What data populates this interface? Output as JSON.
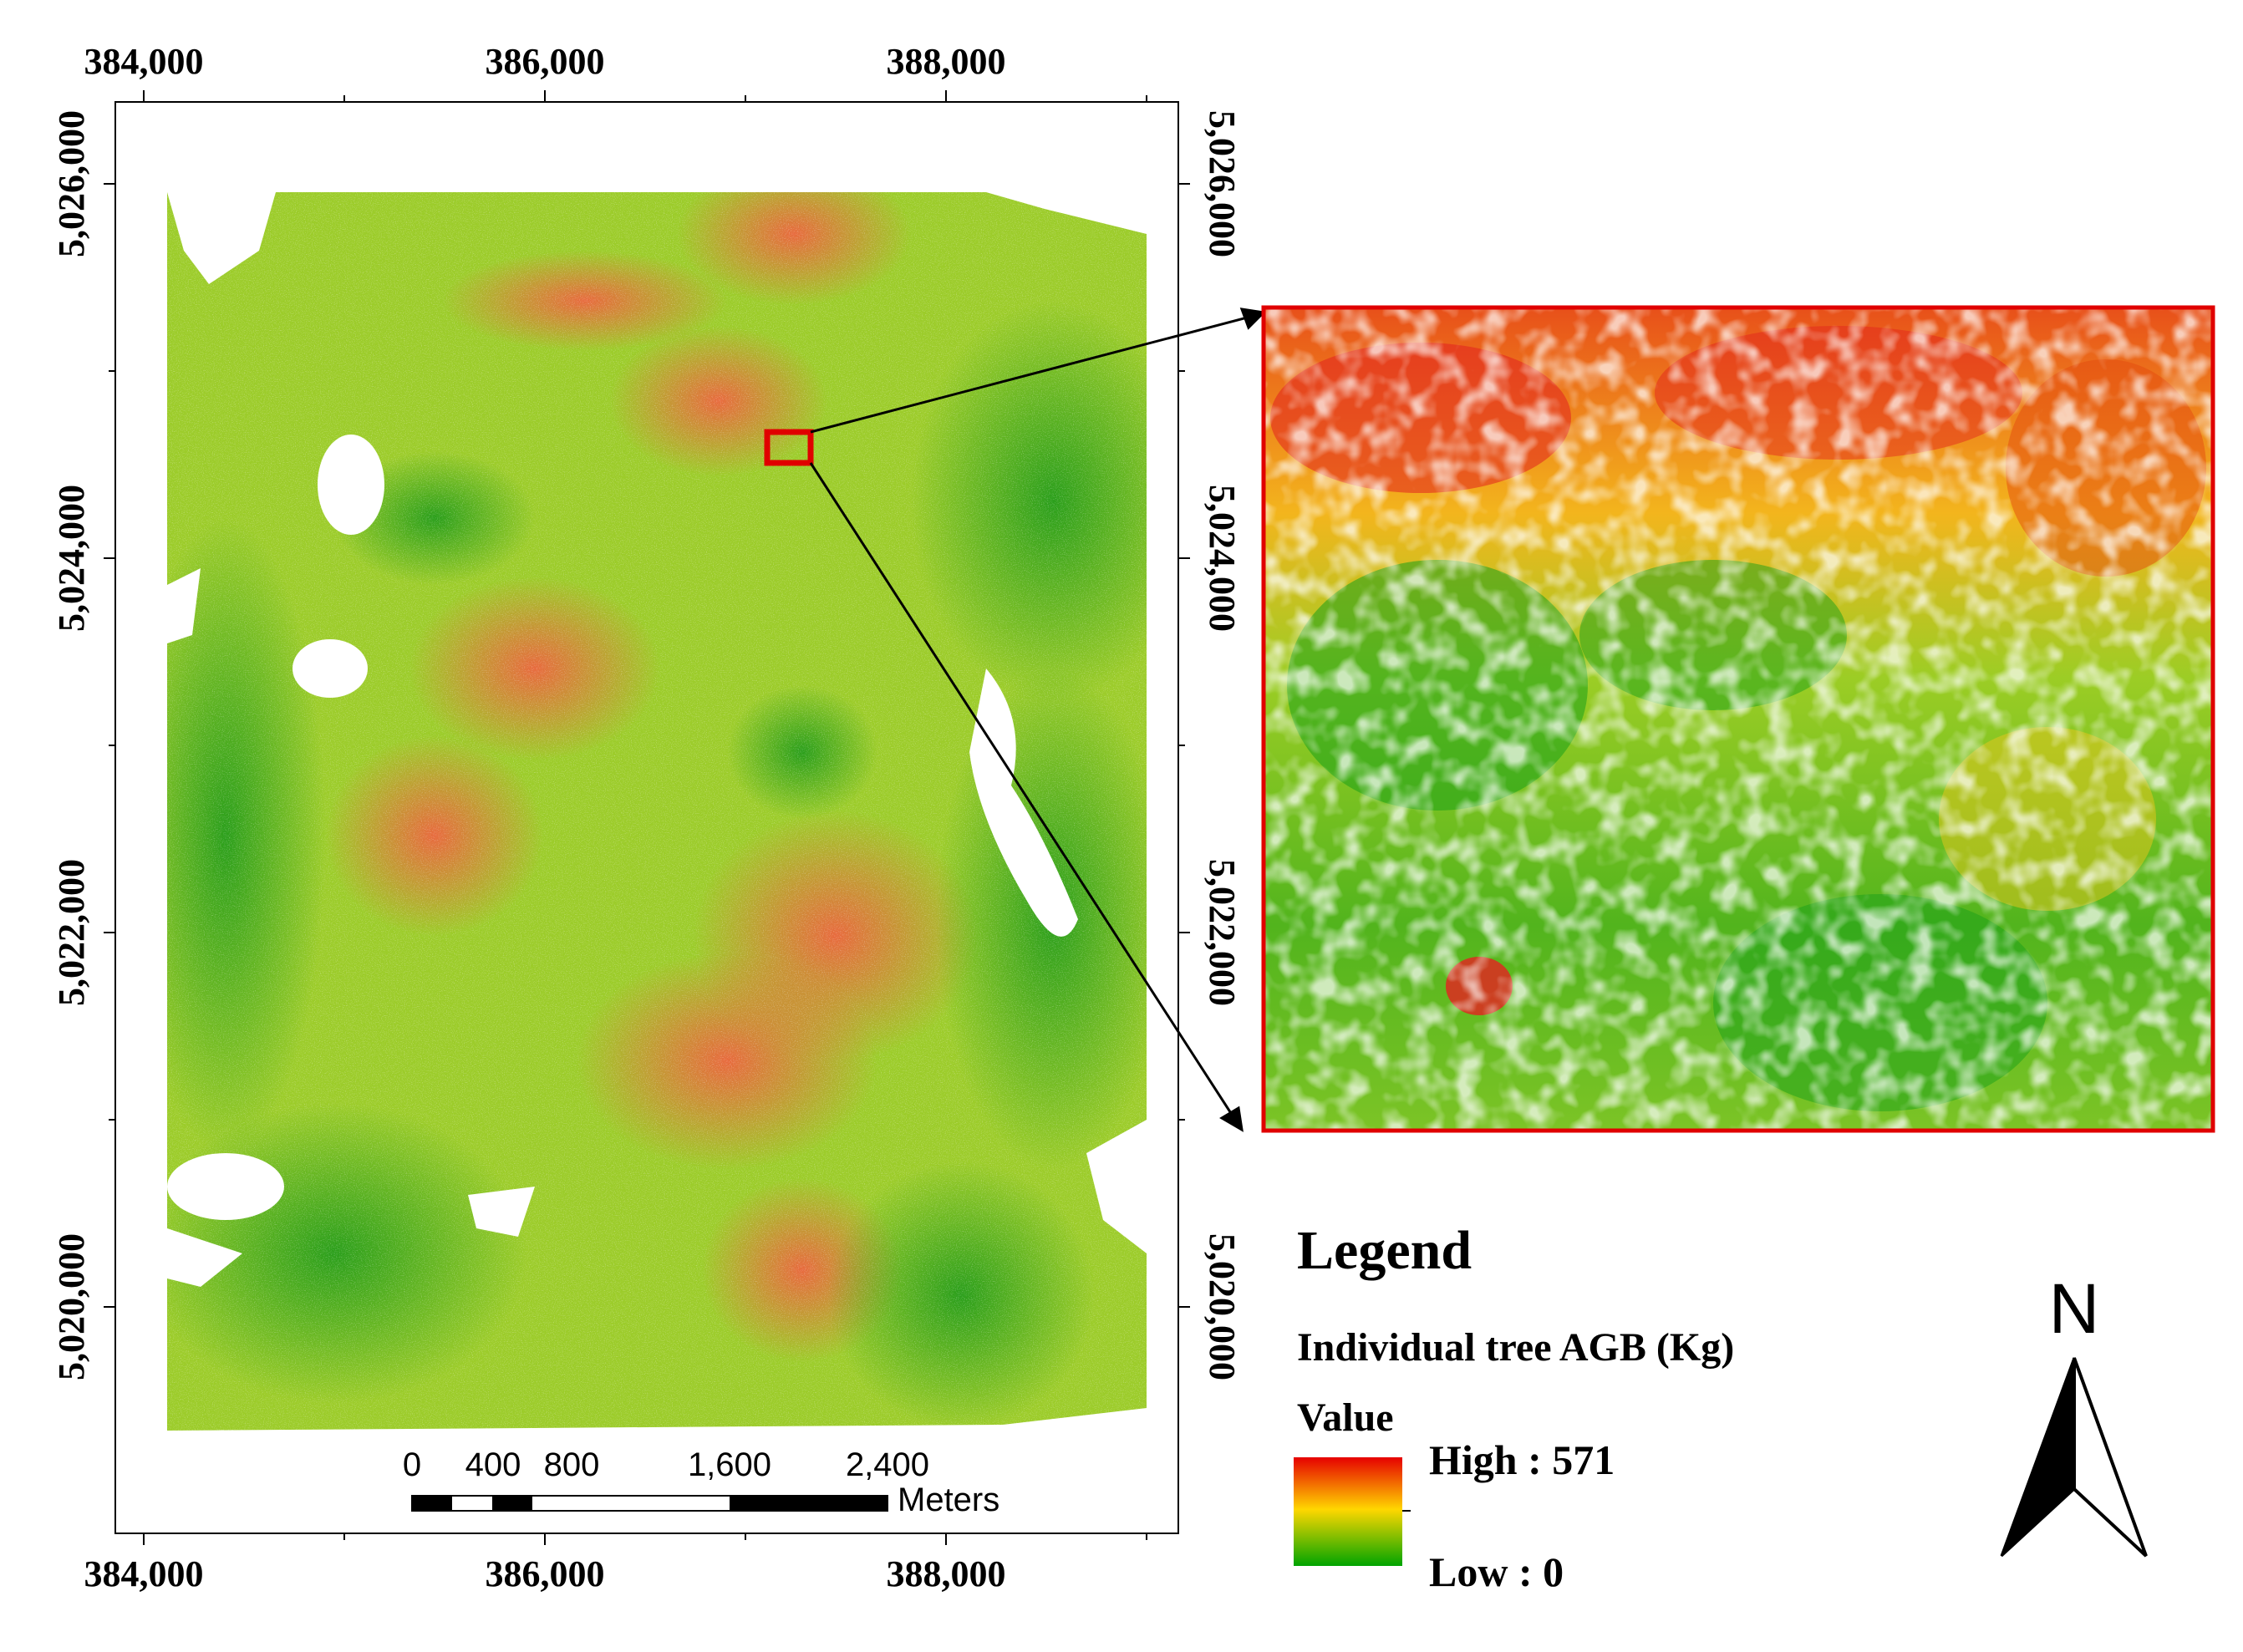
{
  "map": {
    "x_ticks": [
      "384,000",
      "386,000",
      "388,000"
    ],
    "y_ticks": [
      "5,026,000",
      "5,024,000",
      "5,022,000",
      "5,020,000"
    ]
  },
  "scale_bar": {
    "labels": [
      "0",
      "400",
      "800",
      "1,600",
      "2,400"
    ],
    "unit": "Meters"
  },
  "legend": {
    "title": "Legend",
    "layer": "Individual tree AGB (Kg)",
    "value_label": "Value",
    "high_label": "High : 571",
    "low_label": "Low : 0",
    "colors": {
      "high": "#e60000",
      "mid": "#ffd700",
      "low": "#00a400"
    }
  },
  "north_arrow": {
    "label": "N",
    "icon": "north-arrow-icon"
  },
  "inset_box_color": "#e00000"
}
